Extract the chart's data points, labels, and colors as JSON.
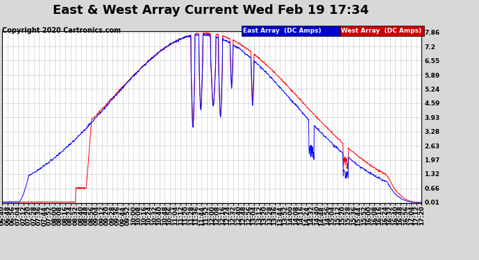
{
  "title": "East & West Array Current Wed Feb 19 17:34",
  "copyright": "Copyright 2020 Cartronics.com",
  "legend_east": "East Array  (DC Amps)",
  "legend_west": "West Array  (DC Amps)",
  "east_color": "#0000ff",
  "west_color": "#ff0000",
  "legend_east_bg": "#0000cc",
  "legend_west_bg": "#cc0000",
  "yticks": [
    0.01,
    0.66,
    1.32,
    1.97,
    2.63,
    3.28,
    3.93,
    4.59,
    5.24,
    5.89,
    6.55,
    7.2,
    7.86
  ],
  "ymin": 0.01,
  "ymax": 7.86,
  "background_color": "#d8d8d8",
  "plot_bg_color": "#ffffff",
  "grid_color": "#aaaaaa",
  "title_fontsize": 13,
  "tick_fontsize": 6.5,
  "copyright_fontsize": 7
}
